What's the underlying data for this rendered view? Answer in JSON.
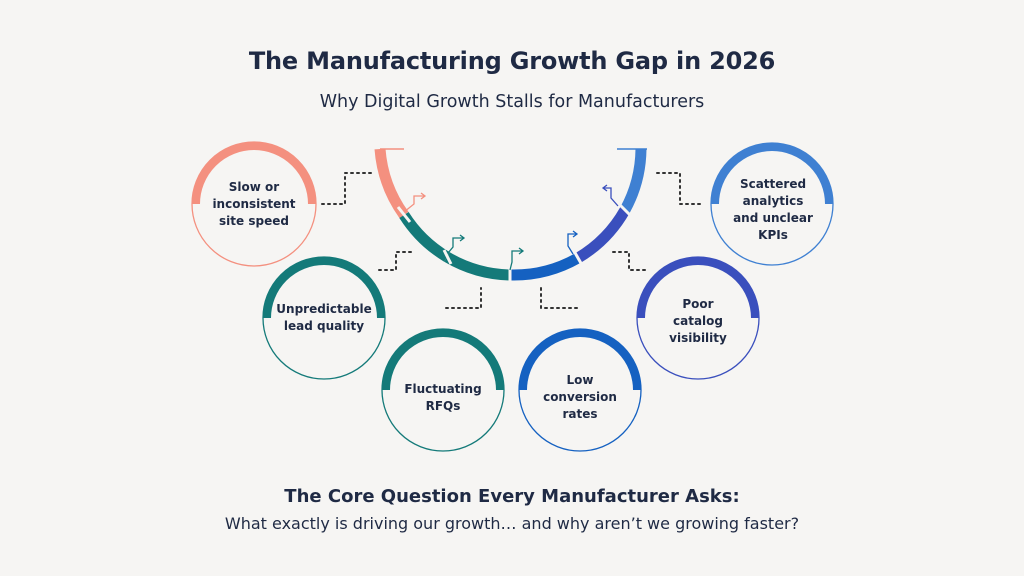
{
  "title": "The Manufacturing Growth Gap in 2026",
  "subtitle": "Why Digital Growth Stalls for Manufacturers",
  "nodes": [
    {
      "label": "Slow or inconsistent site speed",
      "color": "#f4907f"
    },
    {
      "label": "Unpredictable lead quality",
      "color": "#147a79"
    },
    {
      "label": "Fluctuating RFQs",
      "color": "#147a79"
    },
    {
      "label": "Low conversion rates",
      "color": "#1561c1"
    },
    {
      "label": "Poor catalog visibility",
      "color": "#3a4fbd"
    },
    {
      "label": "Scattered analytics and unclear KPIs",
      "color": "#3f80d2"
    }
  ],
  "core": {
    "heading": "The Core Question Every Manufacturer Asks:",
    "question": "What exactly is driving our growth… and why aren’t we growing faster?"
  }
}
